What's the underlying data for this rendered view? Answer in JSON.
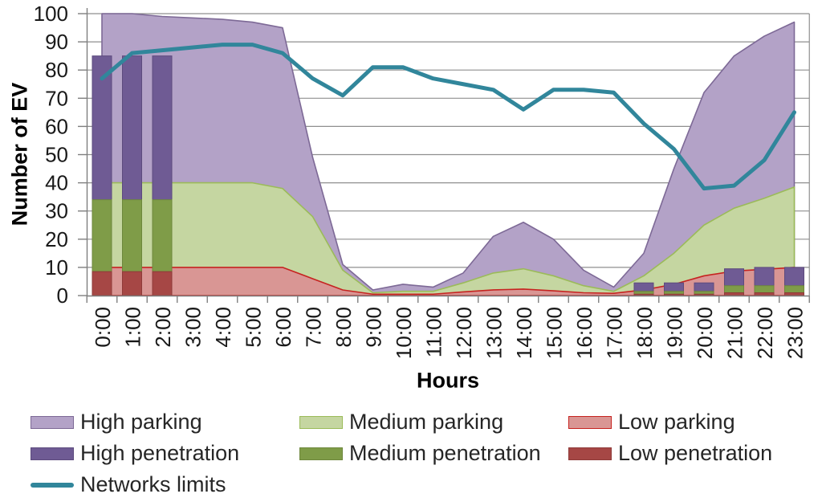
{
  "chart_data": {
    "type": "combo-area-bar-line",
    "x": [
      "0:00",
      "1:00",
      "2:00",
      "3:00",
      "4:00",
      "5:00",
      "6:00",
      "7:00",
      "8:00",
      "9:00",
      "10:00",
      "11:00",
      "12:00",
      "13:00",
      "14:00",
      "15:00",
      "16:00",
      "17:00",
      "18:00",
      "19:00",
      "20:00",
      "21:00",
      "22:00",
      "23:00"
    ],
    "y_axis": {
      "title": "Number of EV",
      "min": 0,
      "max": 100,
      "step": 10
    },
    "x_axis": {
      "title": "Hours"
    },
    "grid": true,
    "legend_position": "bottom",
    "series": [
      {
        "name": "High parking",
        "type": "area",
        "fill": "#b3a2c7",
        "border": "#7d6996",
        "values": [
          100,
          100,
          99,
          98.5,
          98,
          97,
          95,
          49,
          11,
          2,
          4,
          3,
          8,
          21,
          26,
          20,
          9,
          3,
          15,
          45,
          72,
          85,
          92,
          97
        ]
      },
      {
        "name": "Medium parking",
        "type": "area",
        "fill": "#c5d6a1",
        "border": "#9bbb59",
        "values": [
          40,
          40,
          40,
          40,
          40,
          40,
          38,
          28,
          9,
          1,
          1.5,
          1.5,
          4.5,
          8,
          9.5,
          7,
          3.5,
          1.5,
          7,
          15,
          25,
          31,
          34.5,
          38.5
        ]
      },
      {
        "name": "Low parking",
        "type": "area",
        "fill": "#d99694",
        "border": "#c62320",
        "values": [
          10,
          10,
          10,
          10,
          10,
          10,
          10,
          6,
          2,
          0.5,
          0.5,
          0.5,
          1.3,
          2,
          2.3,
          1.7,
          1,
          0.8,
          2,
          4,
          7,
          8.7,
          9.3,
          10
        ]
      },
      {
        "name": "High penetration",
        "type": "bar",
        "fill": "#6f5b94",
        "border": "#5d4b7e",
        "values": [
          85,
          85,
          85,
          null,
          null,
          null,
          null,
          null,
          null,
          null,
          null,
          null,
          null,
          null,
          null,
          null,
          null,
          null,
          4.5,
          4.5,
          4.5,
          9.5,
          10,
          10
        ]
      },
      {
        "name": "Medium penetration",
        "type": "bar",
        "fill": "#7f9c48",
        "border": "#6d873c",
        "values": [
          34,
          34,
          34,
          null,
          null,
          null,
          null,
          null,
          null,
          null,
          null,
          null,
          null,
          null,
          null,
          null,
          null,
          null,
          1.5,
          1.5,
          1.5,
          3.5,
          3.5,
          3.5
        ]
      },
      {
        "name": "Low penetration",
        "type": "bar",
        "fill": "#a64745",
        "border": "#8f3b39",
        "values": [
          8.5,
          8.5,
          8.5,
          null,
          null,
          null,
          null,
          null,
          null,
          null,
          null,
          null,
          null,
          null,
          null,
          null,
          null,
          null,
          0.5,
          0.5,
          0.5,
          1,
          1,
          1
        ]
      },
      {
        "name": "Networks limits",
        "type": "line",
        "fill": "#31869b",
        "border": "#31869b",
        "values": [
          77,
          86,
          87,
          88,
          89,
          89,
          86,
          77,
          71,
          81,
          81,
          77,
          75,
          73,
          66,
          73,
          73,
          72,
          61,
          52,
          38,
          39,
          48,
          65
        ]
      }
    ]
  },
  "legend": {
    "columns": [
      {
        "items": [
          "High parking",
          "High penetration",
          "Networks limits"
        ]
      },
      {
        "items": [
          "Medium parking",
          "Medium penetration"
        ]
      },
      {
        "items": [
          "Low parking",
          "Low penetration"
        ]
      }
    ]
  }
}
